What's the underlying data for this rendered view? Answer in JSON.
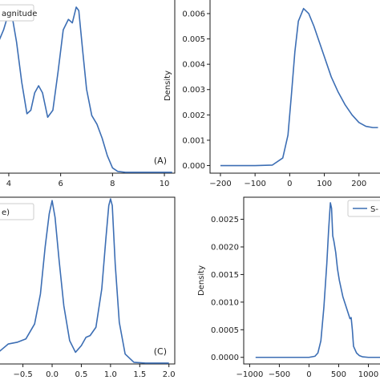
{
  "colors": {
    "line": "#3c6eb4",
    "axis": "#1a1a1a",
    "legend_border": "#cccccc"
  },
  "chart_data": [
    {
      "id": "A",
      "type": "line",
      "panel_label": "(A)",
      "ylabel": "",
      "xlim": [
        3.6,
        10.4
      ],
      "ylim": [
        0.0,
        1.0
      ],
      "xticks": [
        4,
        6,
        8,
        10
      ],
      "xtick_labels": [
        "4",
        "6",
        "8",
        "10"
      ],
      "yticks": [],
      "ytick_labels": [],
      "legend": {
        "label": "agnitude",
        "placement": "top-left"
      },
      "series": [
        {
          "values_x": [
            3.6,
            3.8,
            4.0,
            4.15,
            4.3,
            4.5,
            4.7,
            4.85,
            5.0,
            5.15,
            5.3,
            5.5,
            5.7,
            5.9,
            6.1,
            6.3,
            6.45,
            6.6,
            6.7,
            6.85,
            7.0,
            7.2,
            7.4,
            7.6,
            7.8,
            8.0,
            8.2,
            8.5,
            9.0,
            10.0,
            10.3
          ],
          "values_y": [
            0.75,
            0.82,
            0.92,
            0.88,
            0.75,
            0.52,
            0.34,
            0.36,
            0.46,
            0.5,
            0.46,
            0.32,
            0.36,
            0.58,
            0.82,
            0.88,
            0.86,
            0.95,
            0.93,
            0.7,
            0.48,
            0.33,
            0.28,
            0.2,
            0.1,
            0.03,
            0.01,
            0.005,
            0.005,
            0.005,
            0.005
          ]
        }
      ]
    },
    {
      "id": "B",
      "type": "line",
      "panel_label": "",
      "ylabel": "Density",
      "xlim": [
        -230,
        270
      ],
      "ylim": [
        -0.0003,
        0.0066
      ],
      "xticks": [
        -200,
        -100,
        0,
        100,
        200
      ],
      "xtick_labels": [
        "−200",
        "−100",
        "0",
        "100",
        "200"
      ],
      "yticks": [
        0.0,
        0.001,
        0.002,
        0.003,
        0.004,
        0.005,
        0.006
      ],
      "ytick_labels": [
        "0.000",
        "0.001",
        "0.002",
        "0.003",
        "0.004",
        "0.005",
        "0.006"
      ],
      "legend": null,
      "series": [
        {
          "values_x": [
            -200,
            -100,
            -50,
            -20,
            -5,
            5,
            15,
            25,
            40,
            55,
            70,
            85,
            100,
            120,
            140,
            160,
            180,
            200,
            220,
            240,
            255
          ],
          "values_y": [
            0.0,
            0.0,
            2e-05,
            0.0003,
            0.0012,
            0.0028,
            0.0045,
            0.0057,
            0.0062,
            0.006,
            0.0055,
            0.0049,
            0.0043,
            0.0035,
            0.0029,
            0.0024,
            0.002,
            0.0017,
            0.00155,
            0.0015,
            0.0015
          ]
        }
      ]
    },
    {
      "id": "C",
      "type": "line",
      "panel_label": "(C)",
      "ylabel": "",
      "xlim": [
        -0.92,
        2.1
      ],
      "ylim": [
        0.0,
        1.0
      ],
      "xticks": [
        -0.5,
        0.0,
        0.5,
        1.0,
        1.5,
        2.0
      ],
      "xtick_labels": [
        "−0.5",
        "0.0",
        "0.5",
        "1.0",
        "1.5",
        "2.0"
      ],
      "yticks": [],
      "ytick_labels": [],
      "legend": {
        "label": "e)",
        "placement": "top-left"
      },
      "series": [
        {
          "values_x": [
            -0.92,
            -0.75,
            -0.6,
            -0.45,
            -0.3,
            -0.2,
            -0.12,
            -0.05,
            0.0,
            0.05,
            0.12,
            0.2,
            0.3,
            0.4,
            0.5,
            0.58,
            0.65,
            0.75,
            0.85,
            0.92,
            0.97,
            1.0,
            1.03,
            1.08,
            1.15,
            1.25,
            1.4,
            1.6,
            1.8,
            2.0
          ],
          "values_y": [
            0.07,
            0.12,
            0.13,
            0.15,
            0.24,
            0.42,
            0.7,
            0.9,
            0.98,
            0.88,
            0.62,
            0.35,
            0.14,
            0.07,
            0.11,
            0.16,
            0.17,
            0.22,
            0.45,
            0.75,
            0.95,
            0.99,
            0.95,
            0.6,
            0.25,
            0.06,
            0.01,
            0.005,
            0.005,
            0.005
          ]
        }
      ]
    },
    {
      "id": "D",
      "type": "line",
      "panel_label": "",
      "ylabel": "Density",
      "xlim": [
        -1100,
        1250
      ],
      "ylim": [
        -0.00012,
        0.0029
      ],
      "xticks": [
        -1000,
        -500,
        0,
        500,
        1000
      ],
      "xtick_labels": [
        "−1000",
        "−500",
        "0",
        "500",
        "1000"
      ],
      "yticks": [
        0.0,
        0.0005,
        0.001,
        0.0015,
        0.002,
        0.0025
      ],
      "ytick_labels": [
        "0.0000",
        "0.0005",
        "0.0010",
        "0.0015",
        "0.0020",
        "0.0025"
      ],
      "legend": {
        "label": "S-",
        "placement": "top-right"
      },
      "series": [
        {
          "values_x": [
            -900,
            -500,
            0,
            100,
            150,
            200,
            250,
            300,
            330,
            360,
            380,
            400,
            420,
            450,
            480,
            510,
            540,
            570,
            600,
            630,
            660,
            690,
            710,
            730,
            750,
            800,
            850,
            900,
            1000,
            1100,
            1200
          ],
          "values_y": [
            0.0,
            0.0,
            0.0,
            2e-05,
            8e-05,
            0.0003,
            0.0009,
            0.0017,
            0.0023,
            0.0028,
            0.0027,
            0.0022,
            0.0021,
            0.0019,
            0.0016,
            0.0014,
            0.00125,
            0.0011,
            0.001,
            0.0009,
            0.0008,
            0.0007,
            0.00072,
            0.0005,
            0.0002,
            8e-05,
            3e-05,
            1e-05,
            0.0,
            0.0,
            0.0
          ]
        }
      ]
    }
  ]
}
